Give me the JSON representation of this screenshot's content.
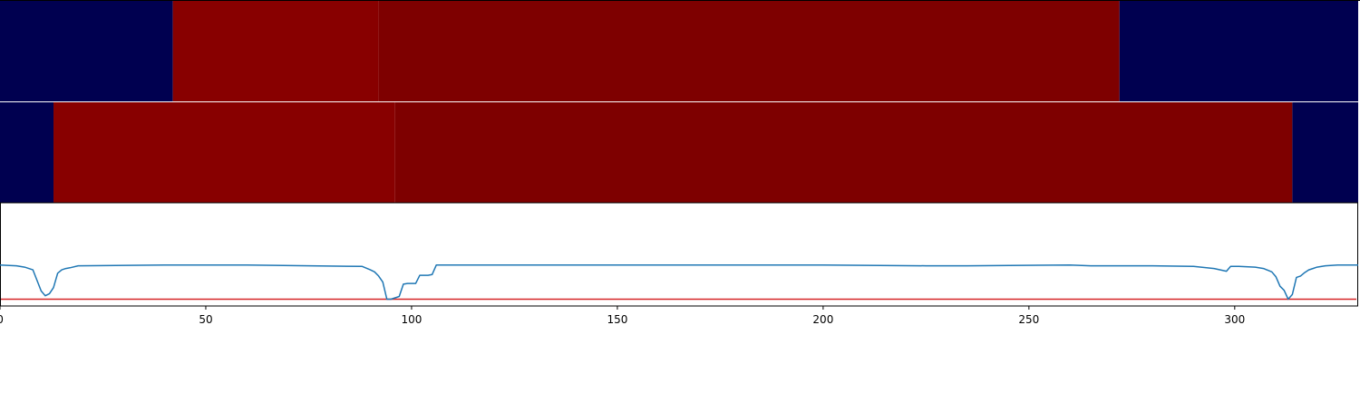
{
  "chart_data": {
    "type": "line",
    "xlim": [
      0,
      330
    ],
    "x_ticks": [
      0,
      50,
      100,
      150,
      200,
      250,
      300
    ],
    "x_tick_labels": [
      "0",
      "50",
      "100",
      "150",
      "200",
      "250",
      "300"
    ],
    "ylim": [
      -0.6,
      0.9
    ],
    "grid": false,
    "colors": {
      "low": "#000050",
      "high_a": "#880000",
      "high_b": "#7e0000",
      "line": "#1f77b4",
      "threshold": "#d62728",
      "separator": "#ffffff"
    },
    "tracks": [
      {
        "segments": [
          {
            "x0": 0,
            "x1": 42,
            "level": "low"
          },
          {
            "x0": 42,
            "x1": 92,
            "level": "high_a"
          },
          {
            "x0": 92,
            "x1": 272,
            "level": "high_b"
          },
          {
            "x0": 272,
            "x1": 330,
            "level": "low"
          }
        ]
      },
      {
        "segments": [
          {
            "x0": 0,
            "x1": 13,
            "level": "low"
          },
          {
            "x0": 13,
            "x1": 96,
            "level": "high_a"
          },
          {
            "x0": 96,
            "x1": 314,
            "level": "high_b"
          },
          {
            "x0": 314,
            "x1": 330,
            "level": "low"
          }
        ]
      }
    ],
    "threshold": -0.5,
    "series": [
      {
        "x": [
          0,
          4,
          6,
          8,
          10,
          11,
          12,
          13,
          14,
          15,
          16,
          17,
          19,
          40,
          60,
          88,
          90,
          91,
          92,
          93,
          94,
          95,
          96,
          97,
          98,
          99,
          101,
          102,
          104,
          105,
          106,
          107,
          108,
          150,
          200,
          225,
          235,
          260,
          265,
          280,
          290,
          295,
          298,
          299,
          301,
          305,
          307,
          309,
          310,
          311,
          312,
          313,
          314,
          315,
          316,
          317,
          318,
          319,
          320,
          322,
          325,
          330
        ],
        "y": [
          0.0,
          -0.01,
          -0.03,
          -0.07,
          -0.38,
          -0.45,
          -0.42,
          -0.33,
          -0.12,
          -0.07,
          -0.05,
          -0.04,
          -0.01,
          0.0,
          0.0,
          -0.02,
          -0.07,
          -0.1,
          -0.16,
          -0.25,
          -0.5,
          -0.5,
          -0.48,
          -0.46,
          -0.28,
          -0.27,
          -0.27,
          -0.15,
          -0.15,
          -0.14,
          0.0,
          0.0,
          0.0,
          0.0,
          0.0,
          -0.01,
          -0.01,
          0.0,
          -0.01,
          -0.01,
          -0.02,
          -0.05,
          -0.09,
          -0.02,
          -0.02,
          -0.03,
          -0.05,
          -0.1,
          -0.17,
          -0.31,
          -0.37,
          -0.5,
          -0.43,
          -0.18,
          -0.16,
          -0.11,
          -0.07,
          -0.05,
          -0.03,
          -0.01,
          0.0,
          0.0
        ]
      }
    ]
  }
}
